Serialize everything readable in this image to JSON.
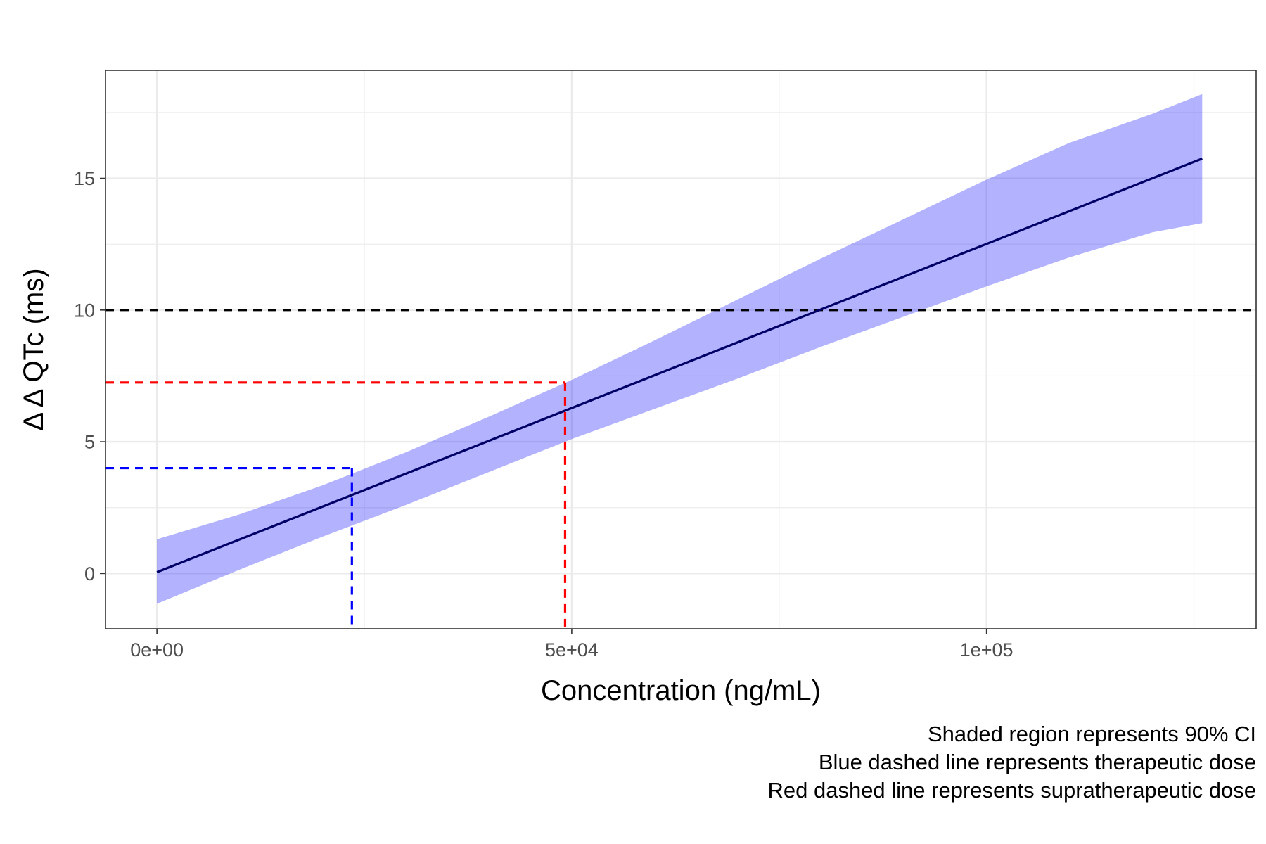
{
  "chart_data": {
    "type": "line",
    "title": "",
    "xlabel": "Concentration (ng/mL)",
    "ylabel": "Δ Δ QTc (ms)",
    "xlim": [
      -6200,
      132500
    ],
    "ylim": [
      -2.1,
      19.1
    ],
    "x_ticks": [
      {
        "value": 0,
        "label": "0e+00"
      },
      {
        "value": 50000,
        "label": "5e+04"
      },
      {
        "value": 100000,
        "label": "1e+05"
      }
    ],
    "y_ticks": [
      {
        "value": 0,
        "label": "0"
      },
      {
        "value": 5,
        "label": "5"
      },
      {
        "value": 10,
        "label": "10"
      },
      {
        "value": 15,
        "label": "15"
      }
    ],
    "x_minor_gridlines": [
      25000,
      75000,
      125000
    ],
    "y_minor_gridlines": [
      2.5,
      7.5,
      12.5,
      17.5
    ],
    "grid": true,
    "series": [
      {
        "kind": "fit-line",
        "color": "#000066",
        "x": [
          0,
          126000
        ],
        "y": [
          0.05,
          15.75
        ]
      },
      {
        "kind": "ci-ribbon",
        "color": "#0000ff",
        "opacity": 0.3,
        "x": [
          0,
          10000,
          20000,
          30000,
          40000,
          50000,
          60000,
          70000,
          80000,
          90000,
          100000,
          110000,
          120000,
          126000
        ],
        "lower": [
          -1.15,
          0.15,
          1.4,
          2.6,
          3.85,
          5.1,
          6.25,
          7.4,
          8.6,
          9.75,
          10.9,
          12.0,
          12.95,
          13.3
        ],
        "upper": [
          1.3,
          2.25,
          3.35,
          4.6,
          5.95,
          7.35,
          8.85,
          10.4,
          11.95,
          13.45,
          14.95,
          16.35,
          17.45,
          18.2
        ]
      }
    ],
    "reference_lines": [
      {
        "kind": "horizontal-threshold",
        "color": "#000000",
        "y": 10
      },
      {
        "kind": "therapeutic",
        "color": "#0000ff",
        "x": 23500,
        "y": 4.0
      },
      {
        "kind": "supratherapeutic",
        "color": "#ff0000",
        "x": 49200,
        "y": 7.25
      }
    ],
    "caption_lines": [
      "Shaded region represents 90% CI",
      "Blue dashed line represents therapeutic dose",
      "Red dashed line represents supratherapeutic dose"
    ]
  }
}
